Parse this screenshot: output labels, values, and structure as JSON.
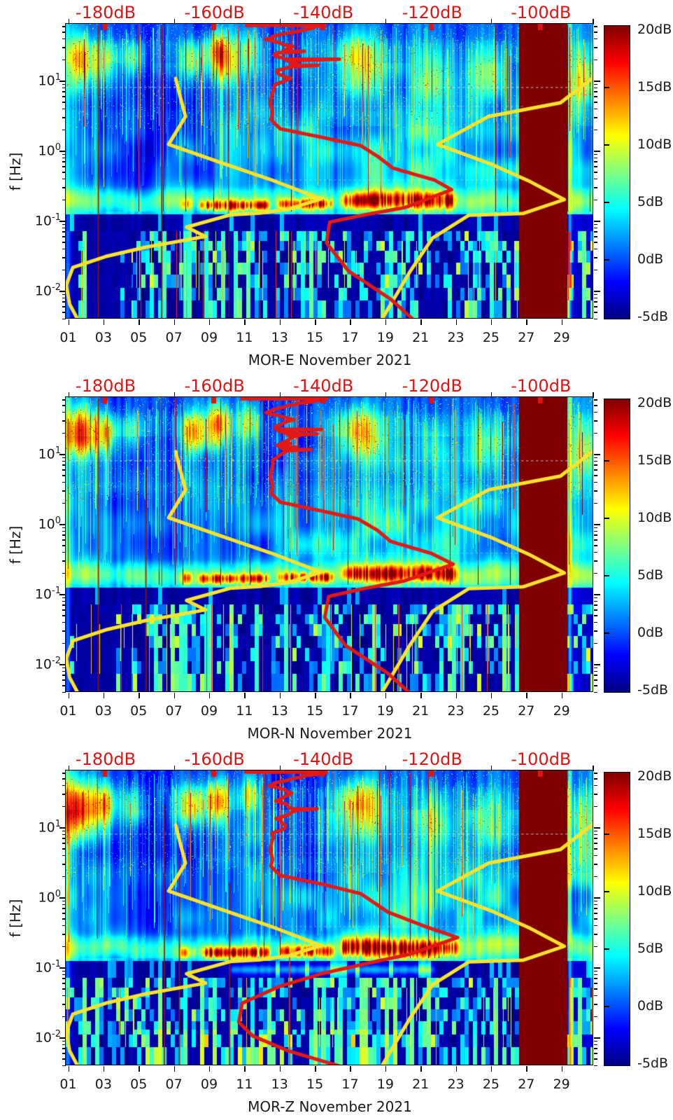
{
  "figure": {
    "background": "#ffffff"
  },
  "chart_data": {
    "type": "heatmap",
    "description": "Three stacked seismic noise spectrograms (power in dB) with Peterson NLNM/NHNM model curves (yellow) and station median PSD (red) overlaid; dark-red saturated data-gap band near end of month.",
    "colormap": "jet",
    "colorbar": {
      "labels": [
        "20dB",
        "15dB",
        "10dB",
        "5dB",
        "0dB",
        "-5dB"
      ],
      "vmin": -5,
      "vmax": 20
    },
    "x_axis": {
      "tick_labels": [
        "01",
        "03",
        "05",
        "07",
        "09",
        "11",
        "13",
        "15",
        "17",
        "19",
        "21",
        "23",
        "25",
        "27",
        "29"
      ],
      "tick_days": [
        1,
        3,
        5,
        7,
        9,
        11,
        13,
        15,
        17,
        19,
        21,
        23,
        25,
        27,
        29
      ],
      "all_tick_days": [
        1,
        3,
        5,
        7,
        9,
        11,
        13,
        15,
        17,
        19,
        21,
        23,
        25,
        27,
        29
      ],
      "day_min": 0.9,
      "day_max": 30.8
    },
    "y_axis": {
      "label": "f [Hz]",
      "tick_exponents": [
        1,
        0,
        -1,
        -2
      ],
      "logf_top": 1.8,
      "logf_bottom": -2.4
    },
    "top_axis": {
      "tick_labels": [
        "-180dB",
        "-160dB",
        "-140dB",
        "-120dB",
        "-100dB"
      ],
      "tick_values": [
        -180,
        -160,
        -140,
        -120,
        -100
      ],
      "db_min": -187.2,
      "db_max": -90.4,
      "label_color": "#dd1414",
      "black_tick_days": [
        1,
        7,
        13,
        19,
        25
      ]
    },
    "colors": {
      "model_curve": "#fce32b",
      "median_curve": "#e51813",
      "saturated_band": "#7f0000",
      "vline_dark": "#8f1505",
      "vline_red": "#e63113",
      "vline_orange": "#ff8c1a"
    },
    "model_curves": {
      "nlnm_db_f": [
        [
          -167,
          10.5
        ],
        [
          -166.3,
          6.3
        ],
        [
          -165.2,
          3.0
        ],
        [
          -168.3,
          1.2
        ],
        [
          -158.7,
          0.66
        ],
        [
          -149.7,
          0.38
        ],
        [
          -140.3,
          0.2
        ],
        [
          -146.4,
          0.142
        ],
        [
          -151.5,
          0.125
        ],
        [
          -157,
          0.118
        ],
        [
          -165,
          0.079
        ],
        [
          -161.5,
          0.058
        ],
        [
          -172.4,
          0.041
        ],
        [
          -179.9,
          0.03
        ],
        [
          -185.9,
          0.021
        ],
        [
          -187.1,
          0.0117
        ],
        [
          -186.5,
          0.0063
        ],
        [
          -185,
          0.0038
        ]
      ],
      "nhnm_db_f": [
        [
          -90.5,
          10.5
        ],
        [
          -96.3,
          4.7
        ],
        [
          -109.5,
          3.0
        ],
        [
          -118.9,
          1.2
        ],
        [
          -109.1,
          0.63
        ],
        [
          -101.8,
          0.35
        ],
        [
          -95.6,
          0.195
        ],
        [
          -103.1,
          0.124
        ],
        [
          -113.1,
          0.117
        ],
        [
          -119.8,
          0.055
        ],
        [
          -124,
          0.018
        ],
        [
          -129.4,
          0.0035
        ]
      ]
    },
    "saturated_band": {
      "day_start": 26.6,
      "day_end": 29.34
    },
    "dotted_lines": [
      {
        "lf": 0.9,
        "d0": 0.9,
        "d1": 30.8,
        "a": 0.5
      },
      {
        "lf": 0.63,
        "d0": 12.0,
        "d1": 27.0,
        "a": 0.28
      },
      {
        "lf": -0.42,
        "d0": 12.5,
        "d1": 26.5,
        "a": 0.3
      }
    ],
    "panels": [
      {
        "name": "MOR-E",
        "title": "MOR-E November 2021",
        "seed": 7,
        "median_db_f": [
          [
            -154.5,
            60
          ],
          [
            -139,
            60
          ],
          [
            -146,
            48
          ],
          [
            -150,
            38
          ],
          [
            -145.5,
            30
          ],
          [
            -149,
            23
          ],
          [
            -144.5,
            17
          ],
          [
            -148.5,
            13
          ],
          [
            -146.5,
            10.5
          ],
          [
            -148.8,
            8
          ],
          [
            -149.3,
            6.2
          ],
          [
            -149.6,
            4.6
          ],
          [
            -149.2,
            3.4
          ],
          [
            -149.5,
            2.7
          ],
          [
            -147.8,
            2.0
          ],
          [
            -139.9,
            1.5
          ],
          [
            -133,
            1.15
          ],
          [
            -129.8,
            0.8
          ],
          [
            -127.1,
            0.55
          ],
          [
            -119.4,
            0.37
          ],
          [
            -116.3,
            0.27
          ],
          [
            -124.9,
            0.15
          ],
          [
            -132.6,
            0.117
          ],
          [
            -138.7,
            0.093
          ],
          [
            -139.3,
            0.047
          ],
          [
            -135.2,
            0.0185
          ],
          [
            -127.5,
            0.0074
          ],
          [
            -122.5,
            0.0033
          ]
        ],
        "blobs": [
          [
            1.65,
            1.3,
            0.55,
            0.24,
            11
          ],
          [
            3.2,
            1.28,
            0.45,
            0.2,
            7
          ],
          [
            4.7,
            1.3,
            0.4,
            0.18,
            6
          ],
          [
            8.1,
            1.3,
            0.5,
            0.2,
            8
          ],
          [
            9.55,
            1.45,
            0.45,
            0.18,
            9
          ],
          [
            9.9,
            1.22,
            0.6,
            0.22,
            8
          ],
          [
            11.3,
            1.45,
            0.4,
            0.2,
            6
          ],
          [
            17.5,
            1.3,
            0.95,
            0.26,
            9
          ],
          [
            21.8,
            1.08,
            0.7,
            0.28,
            5
          ],
          [
            24.8,
            1.12,
            0.8,
            0.28,
            5
          ],
          [
            30.3,
            1.0,
            0.5,
            0.3,
            6
          ],
          [
            6.2,
            0.75,
            1.6,
            0.5,
            -2.6
          ],
          [
            5.6,
            -0.15,
            1.2,
            0.4,
            -1.8
          ],
          [
            14.2,
            1.0,
            1.2,
            0.5,
            -1.6
          ],
          [
            20.5,
            -0.2,
            3.6,
            0.5,
            2.6
          ]
        ],
        "microseism": [
          [
            7.2,
            8.2,
            8,
            -0.78,
            0.06
          ],
          [
            8.3,
            12.6,
            13,
            -0.79,
            0.05
          ],
          [
            12.8,
            16.2,
            11,
            -0.77,
            0.05
          ],
          [
            16.4,
            23.2,
            12,
            -0.72,
            0.08
          ]
        ],
        "vlines": [
          [
            2.75,
            1.78,
            -2.4,
            2,
            "dark"
          ],
          [
            6.35,
            1.78,
            -2.4,
            2,
            "dark"
          ],
          [
            10.15,
            0.9,
            -2.4,
            1,
            "dark"
          ],
          [
            14.05,
            1.78,
            0.2,
            2,
            "red"
          ],
          [
            12.1,
            1.78,
            0.8,
            1,
            "red"
          ],
          [
            9.2,
            1.75,
            0.9,
            1,
            "orange"
          ],
          [
            16.1,
            1.78,
            1.2,
            1,
            "red"
          ]
        ],
        "low_bright": 0
      },
      {
        "name": "MOR-N",
        "title": "MOR-N November 2021",
        "seed": 21,
        "median_db_f": [
          [
            -154.5,
            60
          ],
          [
            -139,
            60
          ],
          [
            -146,
            48
          ],
          [
            -150,
            38
          ],
          [
            -145.5,
            30
          ],
          [
            -149,
            23
          ],
          [
            -144.5,
            17
          ],
          [
            -148.5,
            13
          ],
          [
            -146.5,
            10.5
          ],
          [
            -148.8,
            8
          ],
          [
            -149.3,
            6.2
          ],
          [
            -149.6,
            4.6
          ],
          [
            -149.2,
            3.4
          ],
          [
            -149.5,
            2.7
          ],
          [
            -147.8,
            2.0
          ],
          [
            -140.2,
            1.5
          ],
          [
            -133.5,
            1.15
          ],
          [
            -130,
            0.8
          ],
          [
            -127.5,
            0.55
          ],
          [
            -120,
            0.37
          ],
          [
            -116,
            0.26
          ],
          [
            -125,
            0.15
          ],
          [
            -132.8,
            0.115
          ],
          [
            -138.9,
            0.09
          ],
          [
            -139.6,
            0.045
          ],
          [
            -135.8,
            0.018
          ],
          [
            -128,
            0.0072
          ],
          [
            -123.2,
            0.0033
          ]
        ],
        "blobs": [
          [
            1.7,
            1.3,
            0.6,
            0.26,
            14
          ],
          [
            3.2,
            1.28,
            0.5,
            0.2,
            10
          ],
          [
            4.7,
            1.3,
            0.4,
            0.18,
            6
          ],
          [
            8.1,
            1.3,
            0.5,
            0.2,
            11
          ],
          [
            9.55,
            1.42,
            0.5,
            0.2,
            12
          ],
          [
            11.3,
            1.45,
            0.4,
            0.2,
            7
          ],
          [
            17.5,
            1.3,
            0.9,
            0.26,
            11
          ],
          [
            21.8,
            1.08,
            0.7,
            0.28,
            5
          ],
          [
            24.8,
            1.12,
            0.8,
            0.28,
            5
          ],
          [
            30.3,
            1.0,
            0.5,
            0.3,
            6
          ],
          [
            6.2,
            0.75,
            1.6,
            0.5,
            -2.6
          ],
          [
            5.6,
            -0.15,
            1.2,
            0.4,
            -1.8
          ],
          [
            14.2,
            1.0,
            1.2,
            0.5,
            -1.6
          ],
          [
            20.5,
            -0.2,
            3.6,
            0.5,
            2.6
          ]
        ],
        "microseism": [
          [
            7.2,
            8.2,
            8,
            -0.78,
            0.06
          ],
          [
            8.3,
            12.6,
            14,
            -0.79,
            0.05
          ],
          [
            12.8,
            16.2,
            12,
            -0.77,
            0.05
          ],
          [
            16.4,
            23.2,
            13,
            -0.72,
            0.08
          ]
        ],
        "vlines": [
          [
            2.75,
            1.78,
            -2.4,
            2,
            "dark"
          ],
          [
            5.45,
            0.8,
            -2.4,
            2,
            "dark"
          ],
          [
            6.35,
            1.78,
            -0.9,
            1,
            "dark"
          ],
          [
            14.05,
            1.78,
            0.4,
            2,
            "red"
          ],
          [
            9.2,
            1.75,
            0.9,
            1,
            "orange"
          ],
          [
            12.1,
            1.78,
            0.9,
            1,
            "red"
          ]
        ],
        "low_bright": 0
      },
      {
        "name": "MOR-Z",
        "title": "MOR-Z November 2021",
        "seed": 42,
        "median_db_f": [
          [
            -154.5,
            60
          ],
          [
            -139,
            60
          ],
          [
            -146,
            48
          ],
          [
            -150,
            38
          ],
          [
            -145.5,
            30
          ],
          [
            -149,
            23
          ],
          [
            -144.5,
            17
          ],
          [
            -148.5,
            13
          ],
          [
            -146.5,
            10.5
          ],
          [
            -148.8,
            8
          ],
          [
            -149.3,
            6.2
          ],
          [
            -149.6,
            4.6
          ],
          [
            -149.2,
            3.4
          ],
          [
            -149.5,
            2.7
          ],
          [
            -147.8,
            2.0
          ],
          [
            -140,
            1.5
          ],
          [
            -133,
            1.1
          ],
          [
            -128,
            0.6
          ],
          [
            -121,
            0.37
          ],
          [
            -115.2,
            0.26
          ],
          [
            -124,
            0.15
          ],
          [
            -131,
            0.115
          ],
          [
            -140,
            0.08
          ],
          [
            -148,
            0.052
          ],
          [
            -154.8,
            0.03
          ],
          [
            -155.4,
            0.016
          ],
          [
            -152.8,
            0.0102
          ],
          [
            -146.4,
            0.0063
          ],
          [
            -135.9,
            0.0036
          ]
        ],
        "blobs": [
          [
            1.55,
            1.27,
            0.6,
            0.28,
            15
          ],
          [
            3.0,
            1.3,
            0.55,
            0.22,
            11
          ],
          [
            4.7,
            1.3,
            0.4,
            0.18,
            6
          ],
          [
            7.95,
            1.32,
            0.5,
            0.2,
            11
          ],
          [
            9.5,
            1.35,
            0.5,
            0.22,
            13
          ],
          [
            11.3,
            1.45,
            0.4,
            0.2,
            7
          ],
          [
            17.6,
            1.3,
            0.9,
            0.26,
            11
          ],
          [
            21.9,
            1.06,
            0.7,
            0.28,
            6
          ],
          [
            24.9,
            1.1,
            0.8,
            0.28,
            5
          ],
          [
            30.3,
            1.0,
            0.5,
            0.3,
            6
          ],
          [
            6.2,
            0.75,
            1.5,
            0.5,
            -2.4
          ],
          [
            5.6,
            -0.15,
            1.2,
            0.4,
            -1.6
          ],
          [
            14.2,
            1.0,
            1.1,
            0.5,
            -1.4
          ],
          [
            20.5,
            -0.2,
            3.6,
            0.5,
            2.8
          ]
        ],
        "microseism": [
          [
            7.2,
            8.4,
            9,
            -0.8,
            0.06
          ],
          [
            8.4,
            12.6,
            15,
            -0.8,
            0.06
          ],
          [
            12.8,
            16.2,
            13,
            -0.78,
            0.06
          ],
          [
            16.3,
            23.3,
            14,
            -0.73,
            0.09
          ],
          [
            10,
            22,
            6,
            -1.04,
            0.05
          ]
        ],
        "vlines": [
          [
            2.7,
            1.78,
            -0.6,
            1,
            "dark"
          ],
          [
            6.5,
            1.3,
            -2.4,
            2,
            "dark"
          ],
          [
            7.35,
            0.5,
            -2.4,
            2,
            "dark"
          ],
          [
            10.2,
            0.2,
            -2.4,
            2,
            "dark"
          ],
          [
            13.6,
            -0.8,
            -2.4,
            2,
            "red"
          ],
          [
            7.9,
            1.78,
            0.5,
            1,
            "red"
          ],
          [
            9.4,
            1.75,
            0.7,
            1,
            "orange"
          ],
          [
            12.2,
            1.78,
            0.9,
            1,
            "red"
          ],
          [
            16.1,
            1.78,
            1.2,
            1,
            "red"
          ]
        ],
        "low_bright": 1
      }
    ]
  }
}
